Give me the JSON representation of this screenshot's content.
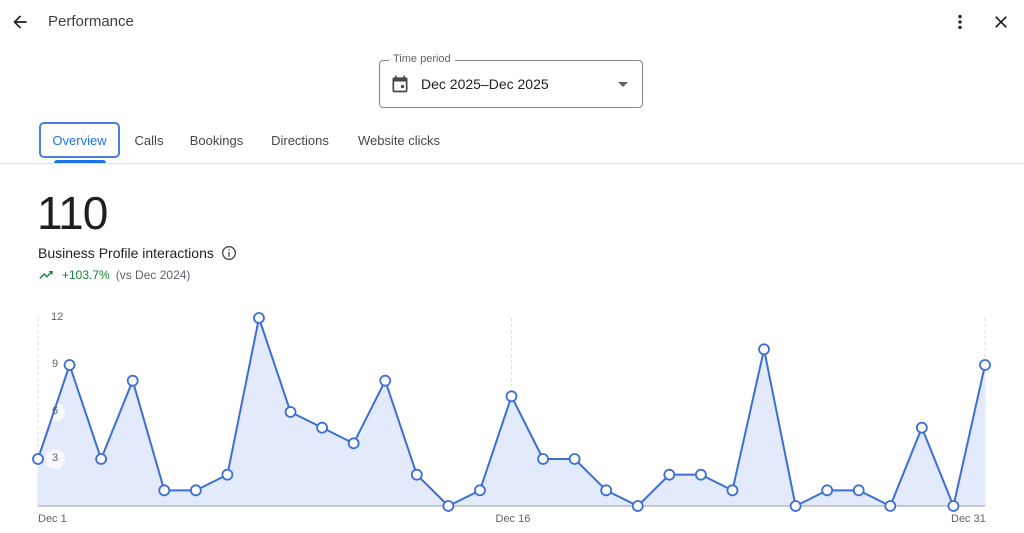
{
  "header": {
    "title": "Performance",
    "back_icon": "arrow-back-icon",
    "more_icon": "more-vert-icon",
    "close_icon": "close-icon"
  },
  "time_period": {
    "label": "Time period",
    "value": "Dec 2025–Dec 2025",
    "icon": "calendar-icon"
  },
  "tabs": [
    {
      "label": "Overview",
      "active": true
    },
    {
      "label": "Calls",
      "active": false
    },
    {
      "label": "Bookings",
      "active": false
    },
    {
      "label": "Directions",
      "active": false
    },
    {
      "label": "Website clicks",
      "active": false
    }
  ],
  "summary": {
    "total": "110",
    "metric_label": "Business Profile interactions",
    "info_icon": "info-icon",
    "trend_icon": "trending-up-icon",
    "trend_pct": "+103.7%",
    "trend_comparison": "(vs Dec 2024)"
  },
  "colors": {
    "accent": "#1a73e8",
    "line": "#3c6fd6",
    "fill": "#e3eafb",
    "positive": "#188038"
  },
  "chart_data": {
    "type": "area",
    "title": "Business Profile interactions",
    "xlabel": "",
    "ylabel": "",
    "x": [
      "Dec 1",
      "Dec 2",
      "Dec 3",
      "Dec 4",
      "Dec 5",
      "Dec 6",
      "Dec 7",
      "Dec 8",
      "Dec 9",
      "Dec 10",
      "Dec 11",
      "Dec 12",
      "Dec 13",
      "Dec 14",
      "Dec 15",
      "Dec 16",
      "Dec 17",
      "Dec 18",
      "Dec 19",
      "Dec 20",
      "Dec 21",
      "Dec 22",
      "Dec 23",
      "Dec 24",
      "Dec 25",
      "Dec 26",
      "Dec 27",
      "Dec 28",
      "Dec 29",
      "Dec 30",
      "Dec 31"
    ],
    "values": [
      3,
      9,
      3,
      8,
      1,
      1,
      2,
      12,
      6,
      5,
      4,
      8,
      2,
      0,
      1,
      7,
      3,
      3,
      1,
      0,
      2,
      2,
      1,
      10,
      0,
      1,
      1,
      0,
      5,
      0,
      9
    ],
    "y_ticks": [
      "3",
      "6",
      "9",
      "12"
    ],
    "x_ticks": [
      "Dec 1",
      "Dec 16",
      "Dec 31"
    ],
    "ylim": [
      0,
      12
    ],
    "grid": false,
    "legend": "none"
  }
}
